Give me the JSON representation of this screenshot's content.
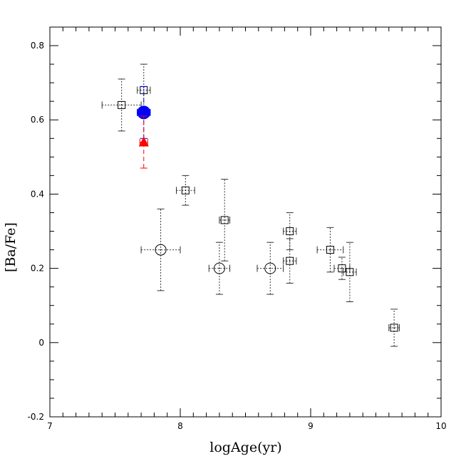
{
  "chart_data": {
    "type": "scatter",
    "title": "",
    "xlabel": "logAge(yr)",
    "ylabel": "[Ba/Fe]",
    "xlim": [
      7,
      10
    ],
    "ylim": [
      -0.2,
      0.85
    ],
    "grid": false,
    "x_ticks": [
      7,
      8,
      9,
      10
    ],
    "x_tick_labels": [
      "7",
      "8",
      "9",
      "10"
    ],
    "y_ticks": [
      -0.2,
      0,
      0.2,
      0.4,
      0.6,
      0.8
    ],
    "y_tick_labels": [
      "-0.2",
      "0",
      "0.2",
      "0.4",
      "0.6",
      "0.8"
    ],
    "colors": {
      "axes": "#000000",
      "open_marker": "#333333",
      "blue_point": "#0000ff",
      "red_point": "#ff0000"
    },
    "series": [
      {
        "marker": "open-square",
        "points": [
          {
            "x": 7.55,
            "y": 0.64,
            "xerr": 0.15,
            "yerr": 0.07
          },
          {
            "x": 7.72,
            "y": 0.68,
            "xerr": 0.05,
            "yerr": 0.07
          },
          {
            "x": 8.04,
            "y": 0.41,
            "xerr": 0.07,
            "yerr": 0.04
          },
          {
            "x": 8.34,
            "y": 0.33,
            "xerr": 0.04,
            "yerr": 0.11
          },
          {
            "x": 8.84,
            "y": 0.3,
            "xerr": 0.05,
            "yerr": 0.05
          },
          {
            "x": 8.84,
            "y": 0.22,
            "xerr": 0.05,
            "yerr": 0.06
          },
          {
            "x": 9.15,
            "y": 0.25,
            "xerr": 0.1,
            "yerr": 0.06
          },
          {
            "x": 9.24,
            "y": 0.2,
            "xerr": 0.06,
            "yerr": 0.03
          },
          {
            "x": 9.3,
            "y": 0.19,
            "xerr": 0.05,
            "yerr": 0.08
          },
          {
            "x": 9.64,
            "y": 0.04,
            "xerr": 0.04,
            "yerr": 0.05
          }
        ]
      },
      {
        "marker": "open-circle",
        "points": [
          {
            "x": 7.85,
            "y": 0.25,
            "xerr": 0.15,
            "yerr": 0.11
          },
          {
            "x": 8.3,
            "y": 0.2,
            "xerr": 0.08,
            "yerr": 0.07
          },
          {
            "x": 8.69,
            "y": 0.2,
            "xerr": 0.1,
            "yerr": 0.07
          }
        ]
      },
      {
        "marker": "filled-circle",
        "color": "#0000ff",
        "points": [
          {
            "x": 7.72,
            "y": 0.62,
            "xerr": 0.05,
            "yerr": 0.07
          }
        ]
      },
      {
        "marker": "filled-triangle",
        "color": "#ff0000",
        "points": [
          {
            "x": 7.72,
            "y": 0.54,
            "xerr": 0.03,
            "yerr": 0.07
          }
        ]
      }
    ]
  }
}
